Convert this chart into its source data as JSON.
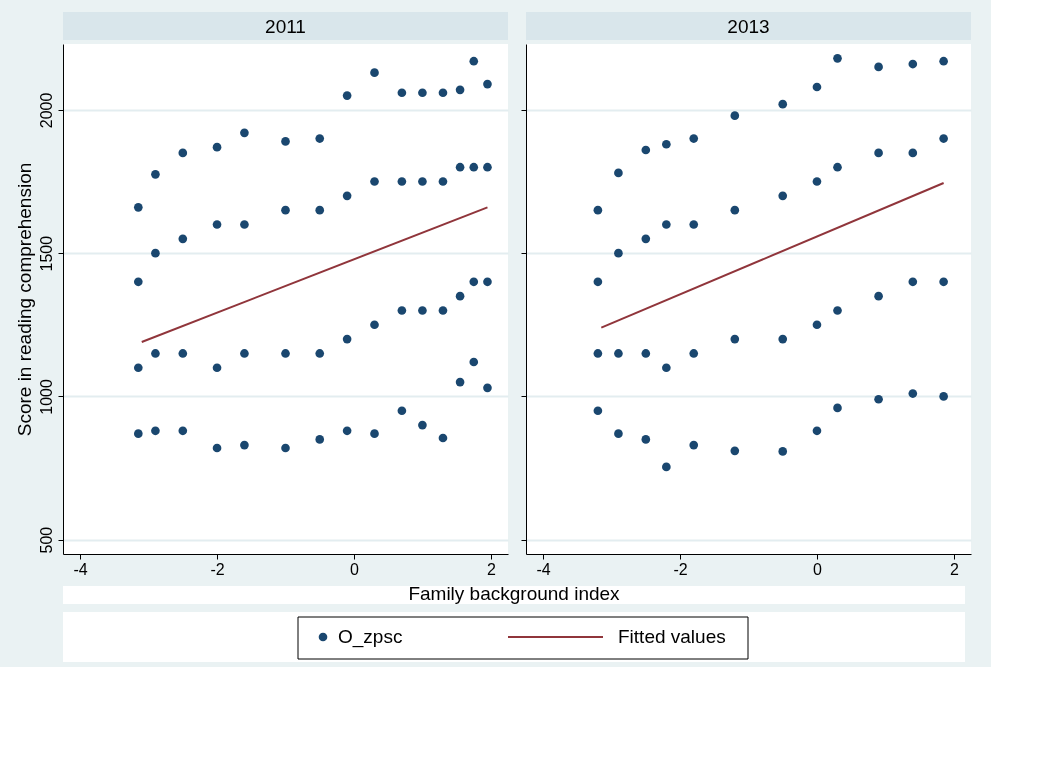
{
  "chart_data": [
    {
      "type": "scatter",
      "title": "2011",
      "xlabel": "Family background index",
      "ylabel": "Score in reading comprehension",
      "xlim": [
        -4.25,
        2.25
      ],
      "xticks": [
        -4,
        -2,
        0,
        2
      ],
      "ylim": [
        450,
        2230
      ],
      "yticks": [
        500,
        1000,
        1500,
        2000
      ],
      "grid": "y",
      "legend": "bottom",
      "series": [
        {
          "name": "O_zpsc",
          "color": "#1a476f",
          "marker": "circle",
          "x": [
            -3.15,
            -2.9,
            -2.5,
            -2.0,
            -1.6,
            -1.0,
            -0.5,
            -0.1,
            0.3,
            0.7,
            1.0,
            1.3,
            1.55,
            1.75,
            1.95,
            -3.15,
            -2.9,
            -2.5,
            -2.0,
            -1.6,
            -1.0,
            -0.5,
            -0.1,
            0.3,
            0.7,
            1.0,
            1.3,
            1.55,
            1.75,
            1.95,
            -3.15,
            -2.9,
            -2.5,
            -2.0,
            -1.6,
            -1.0,
            -0.5,
            -0.1,
            0.3,
            0.7,
            1.0,
            1.3,
            1.55,
            1.75,
            1.95,
            -3.15,
            -2.9,
            -2.5,
            -2.0,
            -1.6,
            -1.0,
            -0.5,
            -0.1,
            0.3,
            0.7,
            1.0,
            1.3,
            1.55,
            1.75,
            1.95
          ],
          "values": [
            1660,
            1775,
            1850,
            1870,
            1920,
            1890,
            1900,
            2050,
            2130,
            2060,
            2060,
            2060,
            2070,
            2170,
            2090,
            870,
            880,
            880,
            820,
            830,
            820,
            850,
            880,
            870,
            950,
            900,
            855,
            1050,
            1120,
            1030,
            1400,
            1500,
            1550,
            1600,
            1600,
            1650,
            1650,
            1700,
            1750,
            1750,
            1750,
            1750,
            1800,
            1800,
            1800,
            1100,
            1150,
            1150,
            1100,
            1150,
            1150,
            1150,
            1200,
            1250,
            1300,
            1300,
            1300,
            1350,
            1400,
            1400
          ]
        },
        {
          "name": "Fitted values",
          "type": "line",
          "marker": "none",
          "color": "#90353b",
          "x": [
            -3.1,
            1.95
          ],
          "values": [
            1190,
            1660
          ]
        }
      ]
    },
    {
      "type": "scatter",
      "title": "2013",
      "xlim": [
        -4.25,
        2.25
      ],
      "xticks": [
        -4,
        -2,
        0,
        2
      ],
      "ylim": [
        450,
        2230
      ],
      "yticks": [
        500,
        1000,
        1500,
        2000
      ],
      "grid": "y",
      "tick_labels": "x",
      "series": [
        {
          "color": "#1a476f",
          "marker": "circle",
          "x": [
            -3.2,
            -2.9,
            -2.5,
            -2.2,
            -1.8,
            -1.2,
            -0.5,
            0,
            0.3,
            0.9,
            1.4,
            1.85,
            -3.2,
            -2.9,
            -2.5,
            -2.2,
            -1.8,
            -1.2,
            -0.5,
            0,
            0.3,
            0.9,
            1.4,
            1.85,
            -3.2,
            -2.9,
            -2.5,
            -2.2,
            -1.8,
            -1.2,
            -0.5,
            0,
            0.3,
            0.9,
            1.4,
            1.85,
            -3.2,
            -2.9,
            -2.5,
            -2.2,
            -1.8,
            -1.2,
            -0.5,
            0,
            0.3,
            0.9,
            1.4,
            1.85
          ],
          "values": [
            1650,
            1780,
            1860,
            1880,
            1900,
            1980,
            2020,
            2080,
            2180,
            2150,
            2160,
            2170,
            950,
            870,
            850,
            754,
            830,
            810,
            808,
            880,
            960,
            990,
            1010,
            1000,
            1400,
            1500,
            1550,
            1600,
            1600,
            1650,
            1700,
            1750,
            1800,
            1850,
            1850,
            1900,
            1150,
            1150,
            1150,
            1100,
            1150,
            1200,
            1200,
            1250,
            1300,
            1350,
            1400,
            1400
          ]
        },
        {
          "type": "line",
          "marker": "none",
          "color": "#90353b",
          "x": [
            -3.15,
            1.85
          ],
          "values": [
            1240,
            1745
          ]
        }
      ]
    }
  ]
}
